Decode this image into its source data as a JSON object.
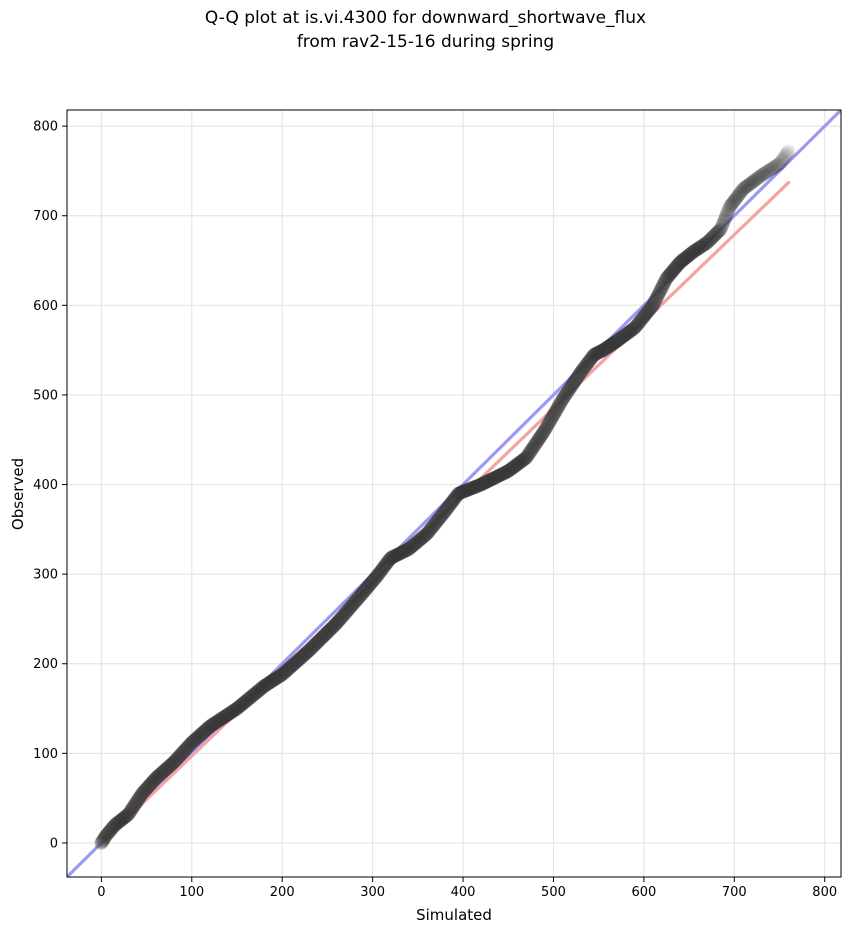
{
  "chart_data": {
    "type": "scatter",
    "title_lines": [
      "Q-Q plot at is.vi.4300 for downward_shortwave_flux",
      "from rav2-15-16 during spring"
    ],
    "xlabel": "Simulated",
    "ylabel": "Observed",
    "xlim": [
      -38,
      818
    ],
    "ylim": [
      -38,
      818
    ],
    "x_ticks": [
      "0",
      "100",
      "200",
      "300",
      "400",
      "500",
      "600",
      "700",
      "800"
    ],
    "y_ticks": [
      "0",
      "100",
      "200",
      "300",
      "400",
      "500",
      "600",
      "700",
      "800"
    ],
    "grid": true,
    "legend": "none",
    "colors": {
      "points": "#3a3a3a",
      "identity_line": "#9a9af2",
      "fit_line": "#f5a3a3",
      "grid": "#e6e6e6"
    },
    "reference_lines": [
      {
        "kind": "identity",
        "x": [
          -38,
          818
        ],
        "y": [
          -38,
          818
        ]
      },
      {
        "kind": "quantile_fit",
        "x": [
          0,
          760
        ],
        "y": [
          0,
          737
        ]
      }
    ],
    "quantile_curve": {
      "x": [
        0,
        5,
        15,
        30,
        45,
        60,
        80,
        100,
        120,
        150,
        180,
        200,
        230,
        260,
        290,
        305,
        320,
        340,
        360,
        380,
        395,
        420,
        450,
        470,
        490,
        510,
        530,
        545,
        555,
        570,
        590,
        610,
        625,
        640,
        655,
        670,
        685,
        695,
        710,
        730,
        750,
        760
      ],
      "y": [
        0,
        8,
        20,
        32,
        55,
        72,
        90,
        112,
        130,
        150,
        175,
        188,
        215,
        245,
        280,
        298,
        318,
        328,
        345,
        370,
        390,
        400,
        415,
        430,
        460,
        495,
        525,
        545,
        550,
        560,
        575,
        600,
        630,
        648,
        660,
        670,
        685,
        710,
        730,
        745,
        758,
        772
      ]
    }
  }
}
